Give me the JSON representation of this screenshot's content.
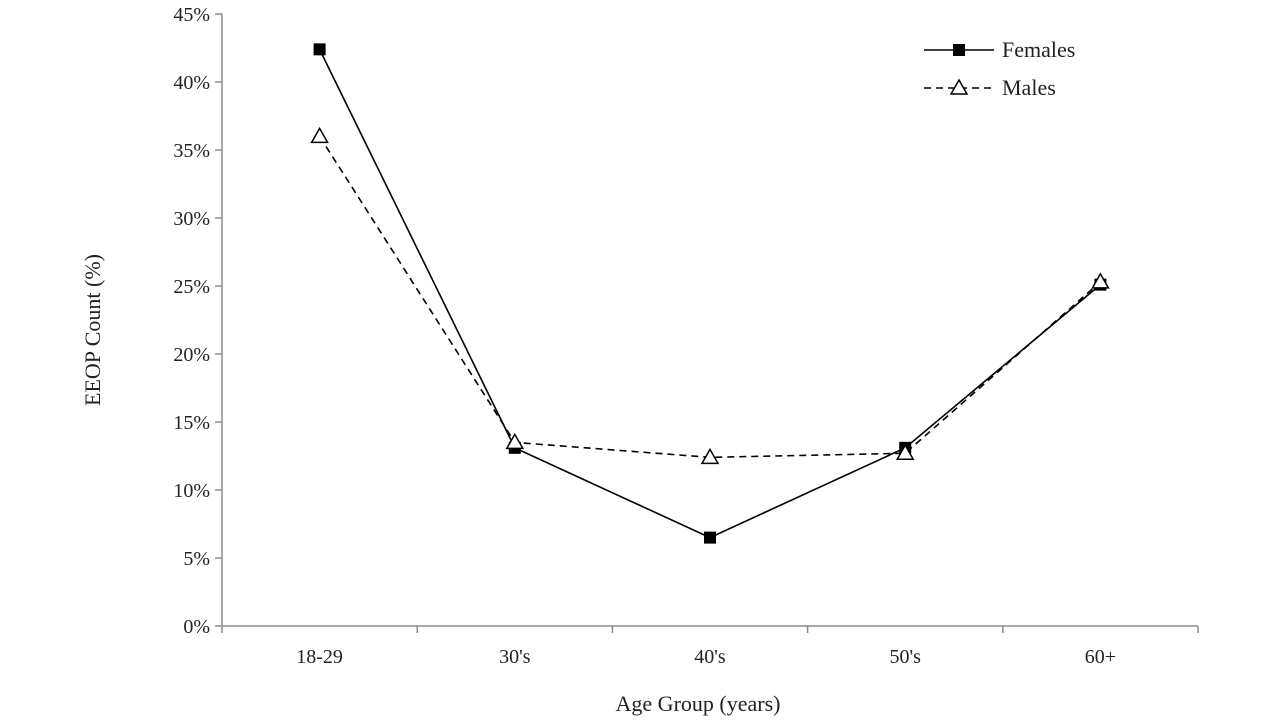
{
  "chart_data": {
    "type": "line",
    "title": "",
    "xlabel": "Age Group (years)",
    "ylabel": "EEOP Count (%)",
    "categories": [
      "18-29",
      "30's",
      "40's",
      "50's",
      "60+"
    ],
    "ylim": [
      0,
      45
    ],
    "yticks": [
      0,
      5,
      10,
      15,
      20,
      25,
      30,
      35,
      40,
      45
    ],
    "ytick_labels": [
      "0%",
      "5%",
      "10%",
      "15%",
      "20%",
      "25%",
      "30%",
      "35%",
      "40%",
      "45%"
    ],
    "grid": false,
    "legend_position": "top-right",
    "series": [
      {
        "name": "Females",
        "values": [
          42.4,
          13.1,
          6.5,
          13.1,
          25.1
        ],
        "line_style": "solid",
        "marker": "filled-square",
        "color": "#000000"
      },
      {
        "name": "Males",
        "values": [
          36.0,
          13.5,
          12.4,
          12.7,
          25.3
        ],
        "line_style": "dashed",
        "marker": "hollow-triangle",
        "color": "#000000"
      }
    ]
  }
}
